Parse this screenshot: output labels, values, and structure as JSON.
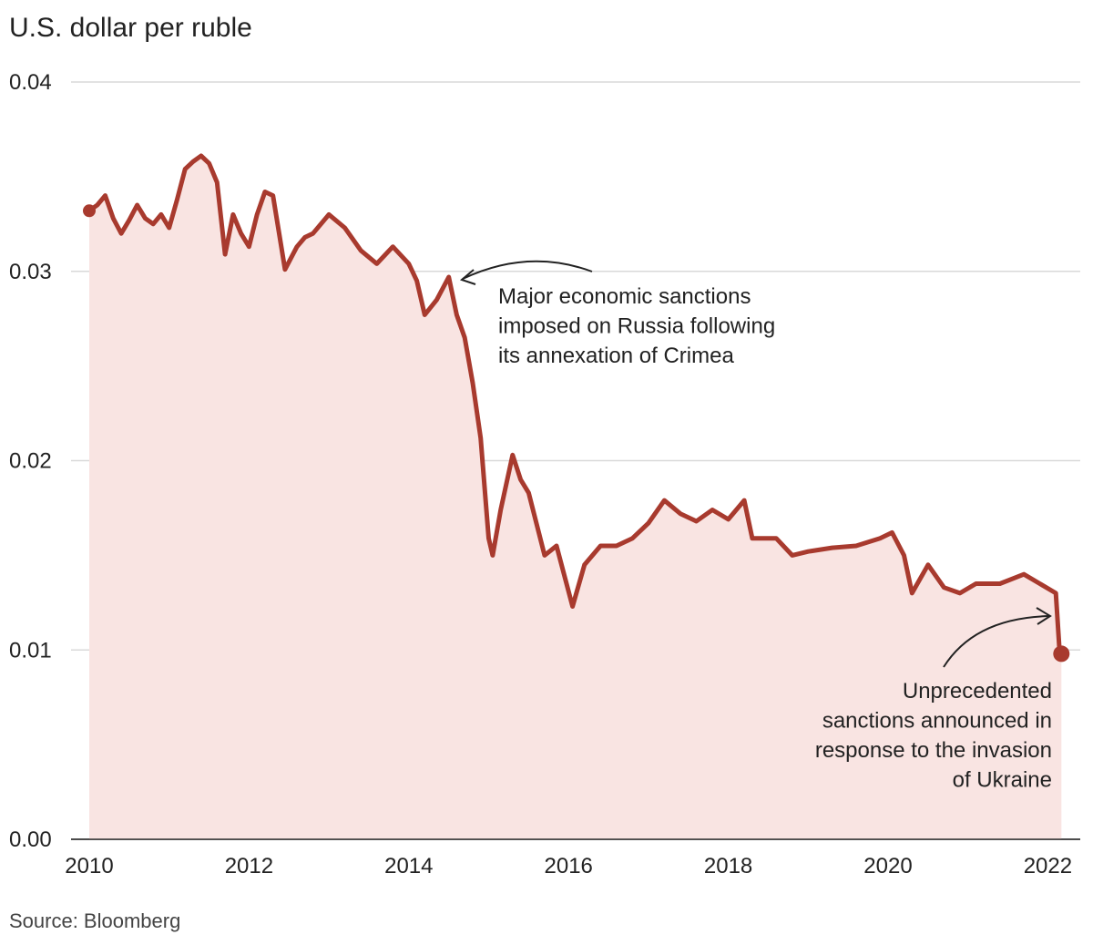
{
  "chart_data": {
    "type": "area",
    "title": "U.S. dollar per ruble",
    "source": "Source: Bloomberg",
    "xlabel": "",
    "ylabel": "",
    "xlim": [
      2010,
      2022.2
    ],
    "ylim": [
      0,
      0.04
    ],
    "grid": true,
    "yticks": [
      "0.00",
      "0.01",
      "0.02",
      "0.03",
      "0.04"
    ],
    "xticks": [
      "2010",
      "2012",
      "2014",
      "2016",
      "2018",
      "2020",
      "2022"
    ],
    "colors": {
      "line": "#a83a2e",
      "fill": "#f9e4e2",
      "grid": "#d9d9d9"
    },
    "series": [
      {
        "x": [
          2010.0,
          2010.1,
          2010.2,
          2010.3,
          2010.4,
          2010.5,
          2010.6,
          2010.7,
          2010.8,
          2010.9,
          2011.0,
          2011.1,
          2011.2,
          2011.3,
          2011.4,
          2011.5,
          2011.6,
          2011.7,
          2011.8,
          2011.9,
          2012.0,
          2012.1,
          2012.2,
          2012.3,
          2012.45,
          2012.6,
          2012.7,
          2012.8,
          2013.0,
          2013.2,
          2013.4,
          2013.6,
          2013.8,
          2014.0,
          2014.1,
          2014.2,
          2014.35,
          2014.5,
          2014.6,
          2014.7,
          2014.8,
          2014.9,
          2015.0,
          2015.05,
          2015.15,
          2015.3,
          2015.4,
          2015.5,
          2015.7,
          2015.85,
          2016.05,
          2016.2,
          2016.4,
          2016.6,
          2016.8,
          2017.0,
          2017.2,
          2017.4,
          2017.6,
          2017.8,
          2018.0,
          2018.2,
          2018.3,
          2018.6,
          2018.8,
          2019.0,
          2019.3,
          2019.6,
          2019.9,
          2020.05,
          2020.2,
          2020.3,
          2020.5,
          2020.7,
          2020.9,
          2021.1,
          2021.4,
          2021.7,
          2021.9,
          2022.1,
          2022.15,
          2022.17
        ],
        "y": [
          0.0332,
          0.0335,
          0.034,
          0.0328,
          0.032,
          0.0327,
          0.0335,
          0.0328,
          0.0325,
          0.033,
          0.0323,
          0.0338,
          0.0354,
          0.0358,
          0.0361,
          0.0357,
          0.0347,
          0.0309,
          0.033,
          0.032,
          0.0313,
          0.033,
          0.0342,
          0.034,
          0.0301,
          0.0313,
          0.0318,
          0.032,
          0.033,
          0.0323,
          0.0311,
          0.0304,
          0.0313,
          0.0304,
          0.0295,
          0.0277,
          0.0285,
          0.0297,
          0.0277,
          0.0265,
          0.0241,
          0.0212,
          0.0159,
          0.015,
          0.0174,
          0.0203,
          0.019,
          0.0183,
          0.015,
          0.0155,
          0.0123,
          0.0145,
          0.0155,
          0.0155,
          0.0159,
          0.0167,
          0.0179,
          0.0172,
          0.0168,
          0.0174,
          0.0169,
          0.0179,
          0.0159,
          0.0159,
          0.015,
          0.0152,
          0.0154,
          0.0155,
          0.0159,
          0.0162,
          0.015,
          0.013,
          0.0145,
          0.0133,
          0.013,
          0.0135,
          0.0135,
          0.014,
          0.0135,
          0.013,
          0.0097,
          0.0098
        ]
      }
    ],
    "annotations": [
      {
        "lines": [
          "Major economic sanctions",
          "imposed on Russia following",
          "its annexation of Crimea"
        ],
        "target_x": 2014.6,
        "target_y": 0.0297
      },
      {
        "lines": [
          "Unprecedented",
          "sanctions announced in",
          "response to the invasion",
          "of Ukraine"
        ],
        "target_x": 2022.1,
        "target_y": 0.0118
      }
    ]
  }
}
